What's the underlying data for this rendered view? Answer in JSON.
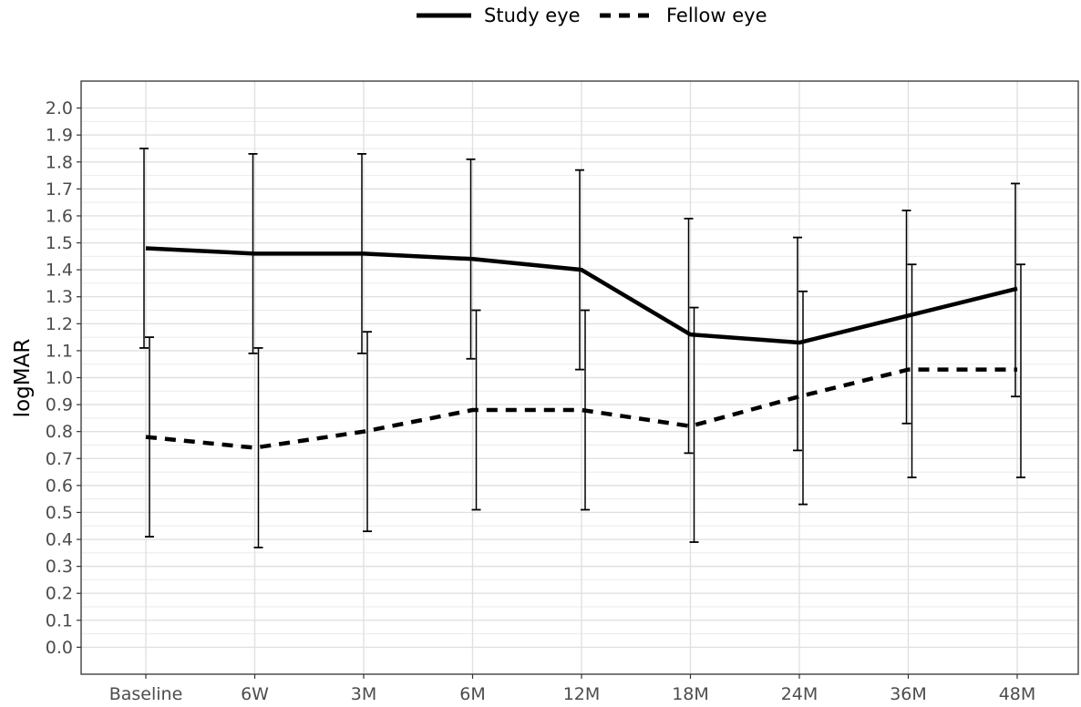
{
  "chart_data": {
    "type": "line",
    "title": "",
    "xlabel": "",
    "ylabel": "logMAR",
    "categories": [
      "Baseline",
      "6W",
      "3M",
      "6M",
      "12M",
      "18M",
      "24M",
      "36M",
      "48M"
    ],
    "ylim": [
      -0.1,
      2.1
    ],
    "yticks": [
      0.0,
      0.1,
      0.2,
      0.3,
      0.4,
      0.5,
      0.6,
      0.7,
      0.8,
      0.9,
      1.0,
      1.1,
      1.2,
      1.3,
      1.4,
      1.5,
      1.6,
      1.7,
      1.8,
      1.9,
      2.0
    ],
    "ytick_labels": [
      "0.0",
      "0.1",
      "0.2",
      "0.3",
      "0.4",
      "0.5",
      "0.6",
      "0.7",
      "0.8",
      "0.9",
      "1.0",
      "1.1",
      "1.2",
      "1.3",
      "1.4",
      "1.5",
      "1.6",
      "1.7",
      "1.8",
      "1.9",
      "2.0"
    ],
    "grid": true,
    "legend_position": "top",
    "series": [
      {
        "name": "Study eye",
        "line_style": "solid",
        "color": "#000000",
        "values": [
          1.48,
          1.46,
          1.46,
          1.44,
          1.4,
          1.16,
          1.13,
          1.23,
          1.33
        ],
        "error_low": [
          1.11,
          1.09,
          1.09,
          1.07,
          1.03,
          0.72,
          0.73,
          0.83,
          0.93
        ],
        "error_high": [
          1.85,
          1.83,
          1.83,
          1.81,
          1.77,
          1.59,
          1.52,
          1.62,
          1.72
        ]
      },
      {
        "name": "Fellow eye",
        "line_style": "dashed",
        "color": "#000000",
        "values": [
          0.78,
          0.74,
          0.8,
          0.88,
          0.88,
          0.82,
          0.93,
          1.03,
          1.03
        ],
        "error_low": [
          0.41,
          0.37,
          0.43,
          0.51,
          0.51,
          0.39,
          0.53,
          0.63,
          0.63
        ],
        "error_high": [
          1.15,
          1.11,
          1.17,
          1.25,
          1.25,
          1.26,
          1.32,
          1.42,
          1.42
        ]
      }
    ]
  }
}
